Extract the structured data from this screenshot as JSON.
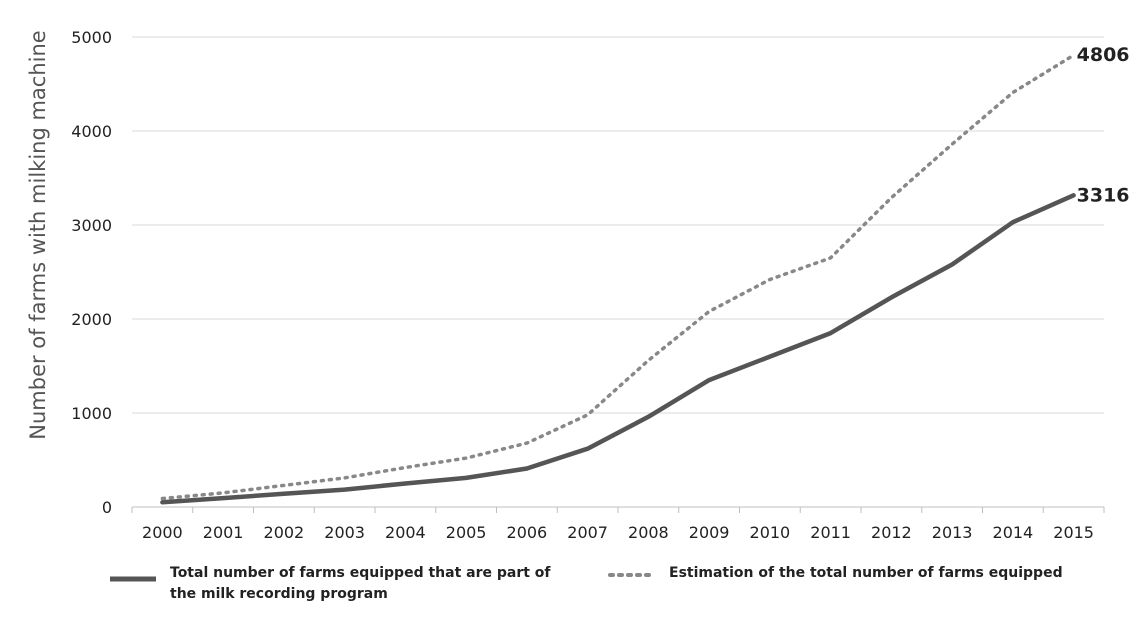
{
  "chart_data": {
    "type": "line",
    "title": "",
    "xlabel": "",
    "ylabel": "Number of farms with milking machine",
    "x": [
      2000,
      2001,
      2002,
      2003,
      2004,
      2005,
      2006,
      2007,
      2008,
      2009,
      2010,
      2011,
      2012,
      2013,
      2014,
      2015
    ],
    "x_tick_labels": [
      "2000",
      "2001",
      "2002",
      "2003",
      "2004",
      "2005",
      "2006",
      "2007",
      "2008",
      "2009",
      "2010",
      "2011",
      "2012",
      "2013",
      "2014",
      "2015"
    ],
    "ylim": [
      0,
      5000
    ],
    "y_ticks": [
      0,
      1000,
      2000,
      3000,
      4000,
      5000
    ],
    "y_tick_labels": [
      "0",
      "1000",
      "2000",
      "3000",
      "4000",
      "5000"
    ],
    "grid": "horizontal",
    "legend_position": "bottom",
    "series": [
      {
        "name": "Total number of farms equipped that are part of the milk recording program",
        "style": "solid",
        "color": "#555555",
        "values": [
          50,
          95,
          140,
          185,
          250,
          310,
          410,
          620,
          960,
          1350,
          1600,
          1850,
          2230,
          2580,
          3030,
          3316
        ],
        "end_label": "3316"
      },
      {
        "name": "Estimation of the total number of farms equipped",
        "style": "dotted",
        "color": "#888888",
        "values": [
          90,
          150,
          230,
          310,
          420,
          520,
          680,
          980,
          1560,
          2080,
          2420,
          2650,
          3290,
          3860,
          4410,
          4806
        ],
        "end_label": "4806"
      }
    ]
  },
  "legend": {
    "solid_label_line1": "Total number of farms equipped that are part of",
    "solid_label_line2": "the milk recording program",
    "dotted_label": "Estimation of the total number of farms equipped"
  }
}
